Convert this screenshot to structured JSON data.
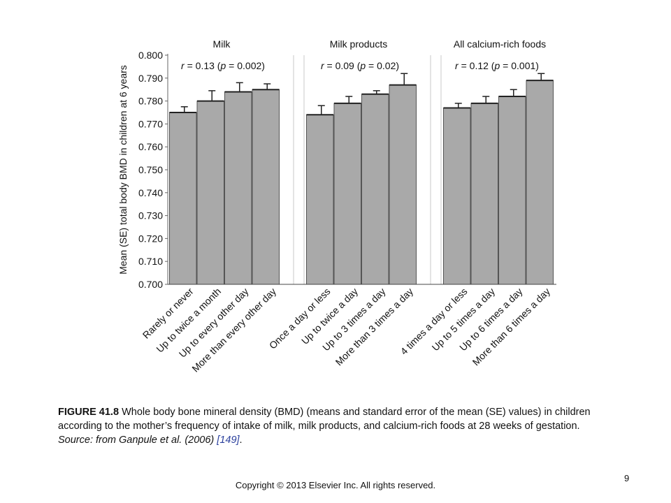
{
  "chart_data": {
    "type": "bar",
    "ylabel": "Mean (SE) total body BMD in children at 6 years",
    "ylim": [
      0.7,
      0.8
    ],
    "yticks": [
      "0.700",
      "0.710",
      "0.720",
      "0.730",
      "0.740",
      "0.750",
      "0.760",
      "0.770",
      "0.780",
      "0.790",
      "0.800"
    ],
    "grid": "vertical separators",
    "bar_color": "#a9a9a9",
    "groups": [
      {
        "title": "Milk",
        "stat": {
          "r": "0.13",
          "p": "0.002"
        },
        "categories": [
          "Rarely or never",
          "Up to twice a month",
          "Up to every other day",
          "More than every other day"
        ],
        "values": [
          0.775,
          0.78,
          0.784,
          0.785
        ],
        "errors": [
          0.0025,
          0.0045,
          0.004,
          0.0025
        ]
      },
      {
        "title": "Milk products",
        "stat": {
          "r": "0.09",
          "p": "0.02"
        },
        "categories": [
          "Once a day or less",
          "Up to twice a day",
          "Up to 3 times a day",
          "More than 3 times a day"
        ],
        "values": [
          0.774,
          0.779,
          0.783,
          0.787
        ],
        "errors": [
          0.004,
          0.003,
          0.0015,
          0.005
        ]
      },
      {
        "title": "All calcium-rich foods",
        "stat": {
          "r": "0.12",
          "p": "0.001"
        },
        "categories": [
          "4 times a day or less",
          "Up to 5 times a day",
          "Up to 6 times a day",
          "More than 6 times a day"
        ],
        "values": [
          0.777,
          0.779,
          0.782,
          0.789
        ],
        "errors": [
          0.002,
          0.003,
          0.003,
          0.003
        ]
      }
    ]
  },
  "caption": {
    "label": "FIGURE 41.8",
    "text": "Whole body bone mineral density (BMD) (means and standard error of the mean (SE) values) in children according to the mother’s frequency of intake of milk, milk products, and calcium-rich foods at 28 weeks of gestation.",
    "source": "Source: from Ganpule et al. (2006)",
    "ref": "[149]"
  },
  "footer": {
    "copyright": "Copyright © 2013 Elsevier Inc. All rights reserved.",
    "page_number": "9"
  }
}
